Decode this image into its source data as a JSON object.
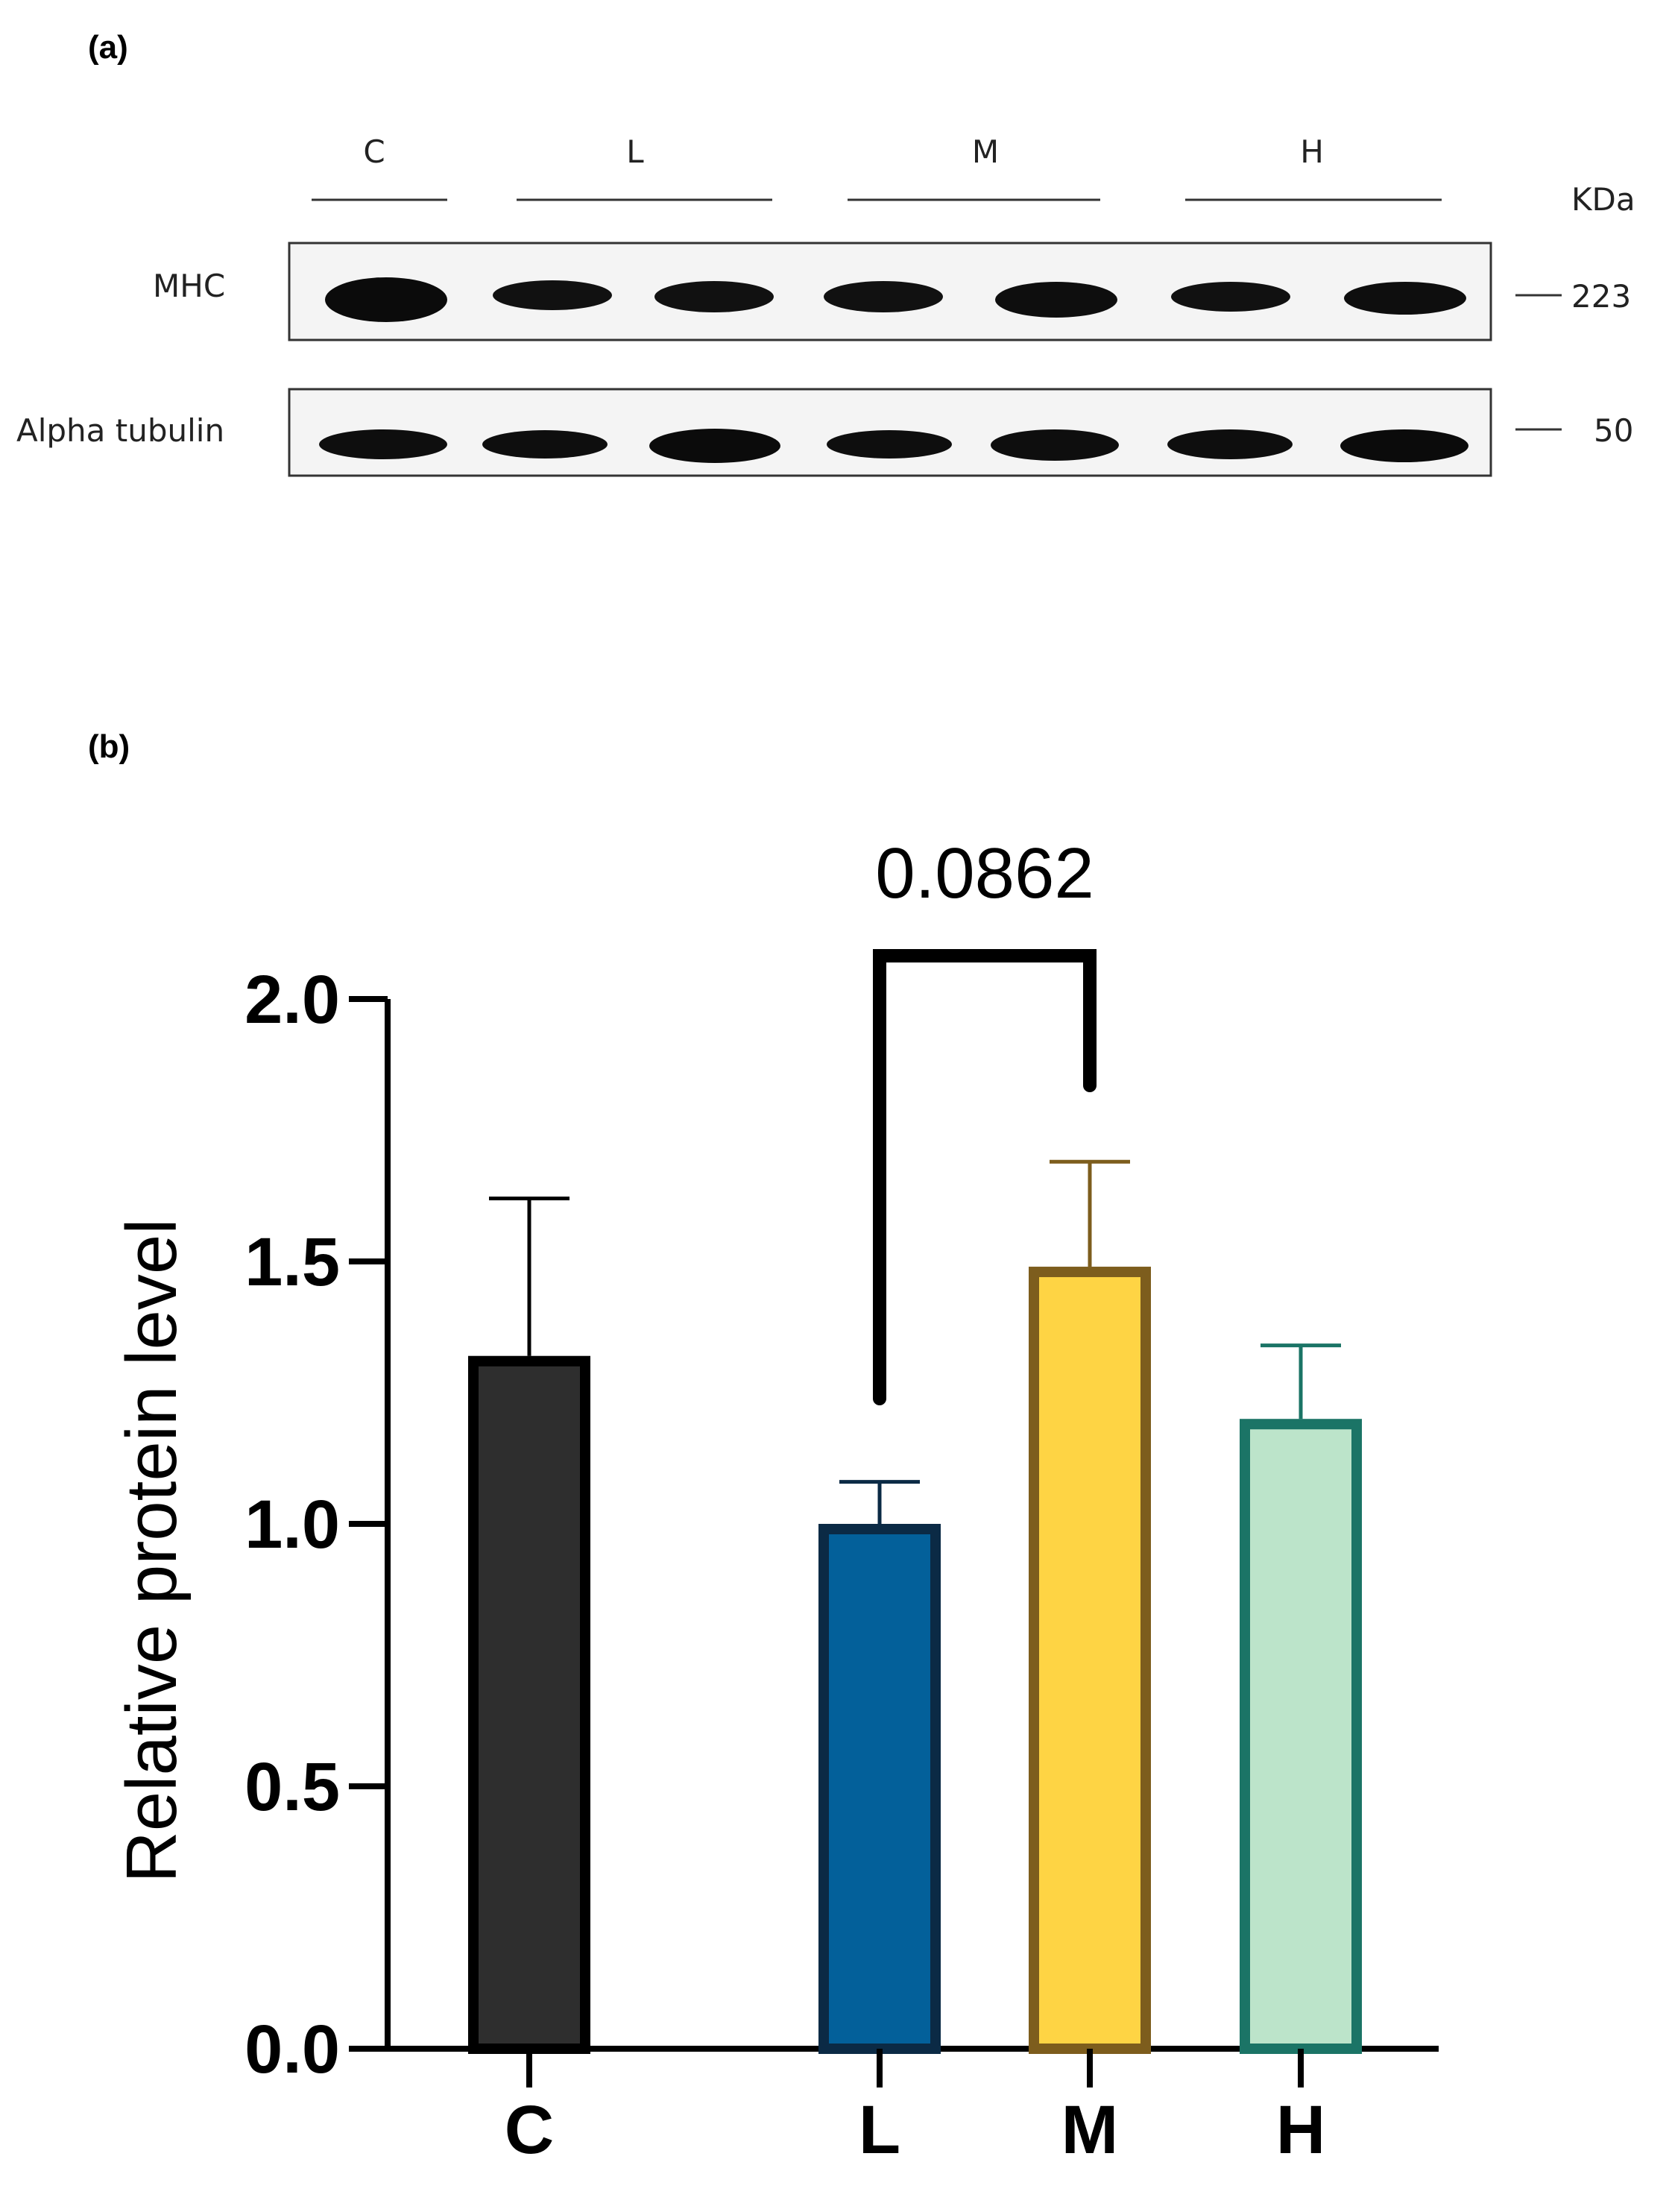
{
  "panel_a": {
    "label": "(a)",
    "groups": [
      "C",
      "L",
      "M",
      "H"
    ],
    "unit_label": "KDa",
    "rows": [
      {
        "name": "MHC",
        "marker": "223"
      },
      {
        "name": "Alpha tubulin",
        "marker": "50"
      }
    ]
  },
  "panel_b": {
    "label": "(b)"
  },
  "chart_data": {
    "type": "bar",
    "title": "",
    "xlabel": "",
    "ylabel": "Relative protein level",
    "categories": [
      "C",
      "L",
      "M",
      "H"
    ],
    "values": [
      1.32,
      1.0,
      1.49,
      1.2
    ],
    "error_upper": [
      1.62,
      1.08,
      1.69,
      1.34
    ],
    "ylim": [
      0,
      2.0
    ],
    "yticks": [
      "0.0",
      "0.5",
      "1.0",
      "1.5",
      "2.0"
    ],
    "grid": false,
    "colors": {
      "fill": [
        "#2e2e2e",
        "#03609a",
        "#fed444",
        "#bce4ca"
      ],
      "stroke": [
        "#000000",
        "#0b2a45",
        "#7d5d1d",
        "#1b7466"
      ]
    },
    "annotations": [
      {
        "type": "significance",
        "from": "L",
        "to": "M",
        "text": "0.0862"
      }
    ]
  }
}
